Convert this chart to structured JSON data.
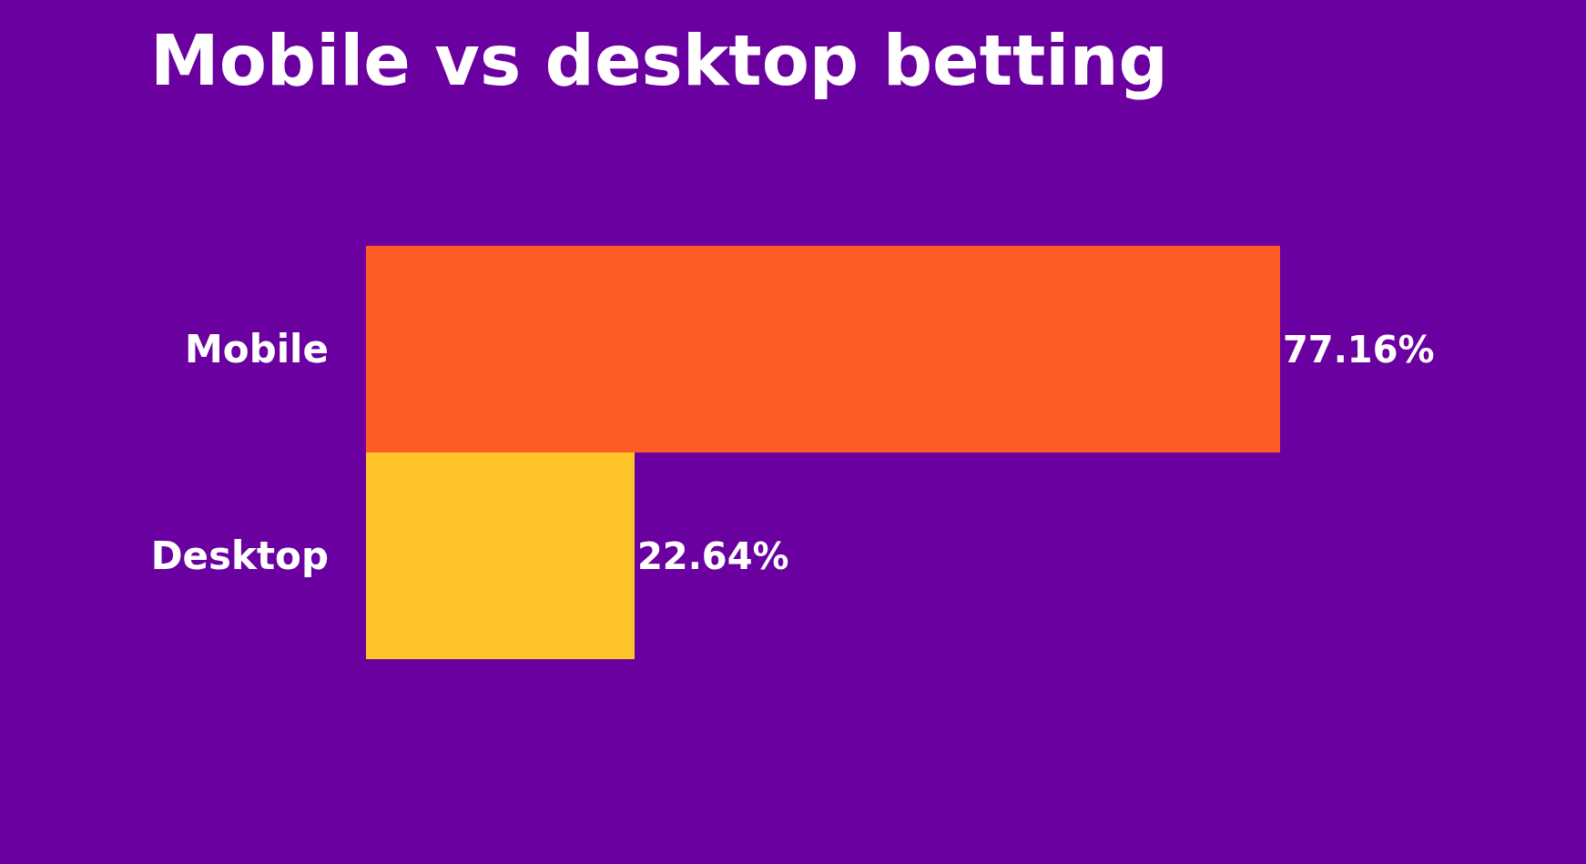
{
  "chart_data": {
    "type": "bar",
    "orientation": "horizontal",
    "title": "Mobile vs desktop betting",
    "categories": [
      "Mobile",
      "Desktop"
    ],
    "values": [
      77.16,
      22.64
    ],
    "colors": [
      "#ff5c24",
      "#ffc42a"
    ],
    "value_labels": [
      "77.16%",
      "22.64%"
    ],
    "tick_labels": "y",
    "grid": false,
    "legend": false
  }
}
